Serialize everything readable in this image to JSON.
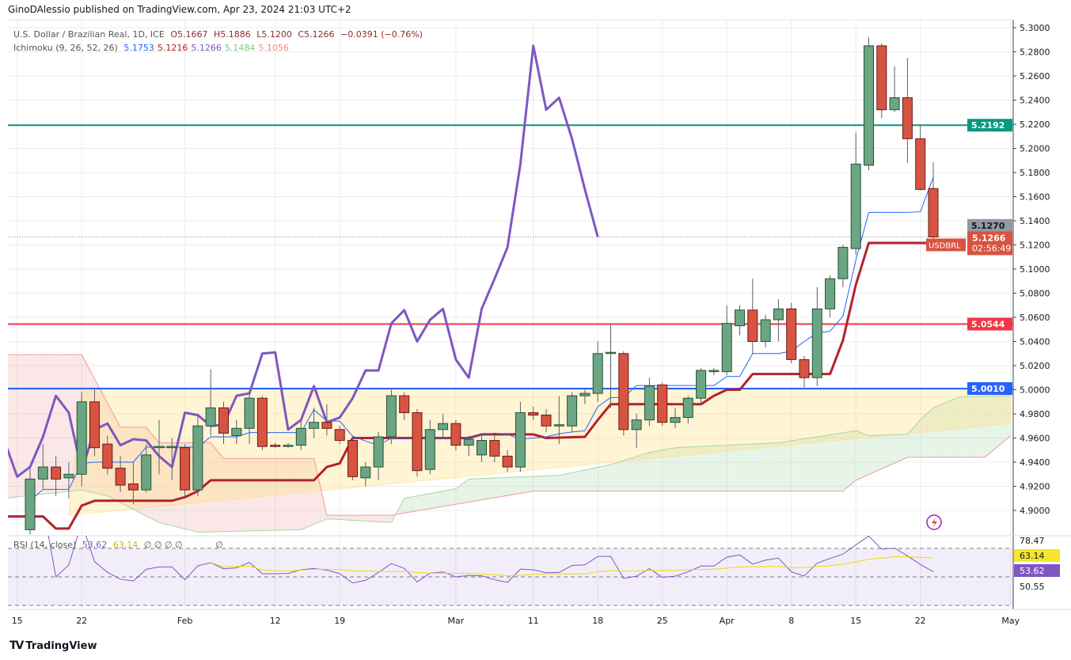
{
  "header": {
    "publisher": "GinoDAlessio published on TradingView.com, Apr 23, 2024 21:03 UTC+2"
  },
  "legend": {
    "symbol": "U.S. Dollar / Brazilian Real, 1D, ICE",
    "open": "O5.1667",
    "high": "H5.1886",
    "low": "L5.1200",
    "close": "C5.1266",
    "change": "−0.0391 (−0.76%)",
    "ichimoku_label": "Ichimoku (9, 26, 52, 26)",
    "ichimoku_values": [
      {
        "value": "5.1753",
        "color": "#2962ff"
      },
      {
        "value": "5.1216",
        "color": "#b71c1c"
      },
      {
        "value": "5.1266",
        "color": "#7e57c2"
      },
      {
        "value": "5.1484",
        "color": "#81c784"
      },
      {
        "value": "5.1056",
        "color": "#f28b82"
      }
    ]
  },
  "rsi_legend": {
    "label": "RSI (14, close)",
    "rsi": "53.62",
    "ma": "63.14",
    "empty": "∅ ∅ ∅ ∅",
    "empty2": "∅"
  },
  "price_axis": {
    "ticks": [
      "5.3000",
      "5.2800",
      "5.2600",
      "5.2400",
      "5.2200",
      "5.2000",
      "5.1800",
      "5.1600",
      "5.1400",
      "5.1200",
      "5.1000",
      "5.0800",
      "5.0600",
      "5.0400",
      "5.0200",
      "5.0000",
      "4.9800",
      "4.9600",
      "4.9400",
      "4.9200",
      "4.9000"
    ],
    "symbol_tag": "USDBRL",
    "last_price": "5.1266",
    "countdown": "02:56:49",
    "gray_tag": "5.1270"
  },
  "rsi_axis": {
    "max_label": "78.47",
    "ma_label": "63.14",
    "rsi_label": "53.62",
    "min_label": "50.55"
  },
  "x_axis": {
    "ticks": [
      {
        "date": "2024-01-15",
        "label": "15"
      },
      {
        "date": "2024-01-22",
        "label": "22"
      },
      {
        "date": "2024-02-01",
        "label": "Feb"
      },
      {
        "date": "2024-02-12",
        "label": "12"
      },
      {
        "date": "2024-02-19",
        "label": "19"
      },
      {
        "date": "2024-03-01",
        "label": "Mar"
      },
      {
        "date": "2024-03-11",
        "label": "11"
      },
      {
        "date": "2024-03-18",
        "label": "18"
      },
      {
        "date": "2024-03-25",
        "label": "25"
      },
      {
        "date": "2024-04-01",
        "label": "Apr"
      },
      {
        "date": "2024-04-08",
        "label": "8"
      },
      {
        "date": "2024-04-15",
        "label": "15"
      },
      {
        "date": "2024-04-22",
        "label": "22"
      },
      {
        "date": "2024-05-01",
        "label": "May"
      }
    ]
  },
  "footer": {
    "brand": "TradingView"
  },
  "colors": {
    "up": "#6ba583",
    "up_border": "#225437",
    "down": "#d75442",
    "down_border": "#6b1a14",
    "tenkan": "#2962ff",
    "kijun": "#b2222e",
    "lagging": "#7e57c2",
    "span_a": "#a5d6a7",
    "span_b": "#ef9a9a",
    "resistance": "#089981",
    "mid_level": "#f23645",
    "support": "#2962ff"
  },
  "chart_data": {
    "type": "candlestick",
    "symbol": "USDBRL",
    "interval": "1D",
    "ylim": [
      4.88,
      5.3
    ],
    "levels": [
      {
        "value": 5.2192,
        "label": "5.2192",
        "color": "#089981"
      },
      {
        "value": 5.0544,
        "label": "5.0544",
        "color": "#f23645"
      },
      {
        "value": 5.001,
        "label": "5.0010",
        "color": "#2962ff"
      }
    ],
    "triangle_drawing": [
      [
        "2024-01-19",
        4.896
      ],
      [
        "2024-01-22",
        5.0
      ],
      [
        "2024-05-01",
        5.0
      ],
      [
        "2024-05-01",
        4.972
      ]
    ],
    "candles": [
      [
        "2024-01-16",
        4.884,
        4.936,
        4.88,
        4.926
      ],
      [
        "2024-01-17",
        4.926,
        4.955,
        4.918,
        4.936
      ],
      [
        "2024-01-18",
        4.936,
        4.945,
        4.912,
        4.926
      ],
      [
        "2024-01-19",
        4.927,
        4.94,
        4.91,
        4.93
      ],
      [
        "2024-01-22",
        4.93,
        4.998,
        4.92,
        4.99
      ],
      [
        "2024-01-23",
        4.99,
        5.0,
        4.945,
        4.952
      ],
      [
        "2024-01-24",
        4.955,
        4.962,
        4.93,
        4.935
      ],
      [
        "2024-01-25",
        4.935,
        4.945,
        4.915,
        4.921
      ],
      [
        "2024-01-26",
        4.922,
        4.94,
        4.905,
        4.917
      ],
      [
        "2024-01-29",
        4.917,
        4.955,
        4.915,
        4.946
      ],
      [
        "2024-01-30",
        4.952,
        4.975,
        4.93,
        4.953
      ],
      [
        "2024-01-31",
        4.952,
        4.96,
        4.925,
        4.953
      ],
      [
        "2024-02-01",
        4.952,
        4.955,
        4.912,
        4.917
      ],
      [
        "2024-02-02",
        4.917,
        4.98,
        4.912,
        4.97
      ],
      [
        "2024-02-05",
        4.97,
        5.017,
        4.962,
        4.985
      ],
      [
        "2024-02-06",
        4.985,
        4.99,
        4.955,
        4.964
      ],
      [
        "2024-02-07",
        4.962,
        4.975,
        4.955,
        4.968
      ],
      [
        "2024-02-08",
        4.968,
        4.998,
        4.955,
        4.993
      ],
      [
        "2024-02-09",
        4.993,
        4.995,
        4.95,
        4.953
      ],
      [
        "2024-02-12",
        4.954,
        4.956,
        4.952,
        4.953
      ],
      [
        "2024-02-13",
        4.954,
        4.956,
        4.952,
        4.954
      ],
      [
        "2024-02-14",
        4.954,
        4.975,
        4.95,
        4.968
      ],
      [
        "2024-02-15",
        4.968,
        4.985,
        4.96,
        4.973
      ],
      [
        "2024-02-16",
        4.973,
        4.988,
        4.962,
        4.968
      ],
      [
        "2024-02-19",
        4.967,
        4.97,
        4.955,
        4.958
      ],
      [
        "2024-02-20",
        4.958,
        4.96,
        4.925,
        4.928
      ],
      [
        "2024-02-21",
        4.927,
        4.94,
        4.92,
        4.936
      ],
      [
        "2024-02-22",
        4.936,
        4.965,
        4.925,
        4.961
      ],
      [
        "2024-02-23",
        4.961,
        5.0,
        4.955,
        4.995
      ],
      [
        "2024-02-26",
        4.995,
        4.998,
        4.975,
        4.981
      ],
      [
        "2024-02-27",
        4.981,
        4.984,
        4.928,
        4.933
      ],
      [
        "2024-02-28",
        4.934,
        4.975,
        4.93,
        4.967
      ],
      [
        "2024-02-29",
        4.967,
        4.98,
        4.96,
        4.972
      ],
      [
        "2024-03-01",
        4.972,
        4.975,
        4.95,
        4.954
      ],
      [
        "2024-03-04",
        4.954,
        4.962,
        4.945,
        4.959
      ],
      [
        "2024-03-05",
        4.946,
        4.962,
        4.94,
        4.958
      ],
      [
        "2024-03-06",
        4.958,
        4.962,
        4.94,
        4.945
      ],
      [
        "2024-03-07",
        4.945,
        4.95,
        4.932,
        4.936
      ],
      [
        "2024-03-08",
        4.936,
        4.99,
        4.932,
        4.981
      ],
      [
        "2024-03-11",
        4.981,
        4.986,
        4.975,
        4.979
      ],
      [
        "2024-03-12",
        4.979,
        4.984,
        4.965,
        4.97
      ],
      [
        "2024-03-13",
        4.97,
        4.995,
        4.955,
        4.971
      ],
      [
        "2024-03-14",
        4.97,
        4.998,
        4.965,
        4.995
      ],
      [
        "2024-03-15",
        4.995,
        5.0,
        4.988,
        4.997
      ],
      [
        "2024-03-18",
        4.997,
        5.04,
        4.99,
        5.03
      ],
      [
        "2024-03-19",
        5.03,
        5.055,
        4.985,
        5.031
      ],
      [
        "2024-03-20",
        5.03,
        5.032,
        4.962,
        4.967
      ],
      [
        "2024-03-21",
        4.967,
        4.98,
        4.952,
        4.975
      ],
      [
        "2024-03-22",
        4.975,
        5.01,
        4.97,
        5.003
      ],
      [
        "2024-03-25",
        5.004,
        5.006,
        4.97,
        4.973
      ],
      [
        "2024-03-26",
        4.973,
        4.985,
        4.968,
        4.977
      ],
      [
        "2024-03-27",
        4.977,
        4.995,
        4.972,
        4.993
      ],
      [
        "2024-03-28",
        4.993,
        5.018,
        4.988,
        5.016
      ],
      [
        "2024-03-29",
        5.015,
        5.018,
        5.012,
        5.016
      ],
      [
        "2024-04-01",
        5.015,
        5.07,
        5.012,
        5.055
      ],
      [
        "2024-04-02",
        5.053,
        5.07,
        5.045,
        5.066
      ],
      [
        "2024-04-03",
        5.066,
        5.092,
        5.03,
        5.04
      ],
      [
        "2024-04-04",
        5.04,
        5.062,
        5.035,
        5.058
      ],
      [
        "2024-04-05",
        5.058,
        5.075,
        5.04,
        5.067
      ],
      [
        "2024-04-08",
        5.067,
        5.072,
        5.022,
        5.025
      ],
      [
        "2024-04-09",
        5.025,
        5.028,
        5.002,
        5.01
      ],
      [
        "2024-04-10",
        5.01,
        5.085,
        5.003,
        5.067
      ],
      [
        "2024-04-11",
        5.067,
        5.095,
        5.06,
        5.092
      ],
      [
        "2024-04-12",
        5.092,
        5.12,
        5.085,
        5.118
      ],
      [
        "2024-04-15",
        5.117,
        5.213,
        5.112,
        5.187
      ],
      [
        "2024-04-16",
        5.186,
        5.292,
        5.182,
        5.285
      ],
      [
        "2024-04-17",
        5.285,
        5.287,
        5.225,
        5.232
      ],
      [
        "2024-04-18",
        5.232,
        5.268,
        5.23,
        5.242
      ],
      [
        "2024-04-19",
        5.242,
        5.275,
        5.188,
        5.208
      ],
      [
        "2024-04-22",
        5.208,
        5.22,
        5.165,
        5.166
      ],
      [
        "2024-04-23",
        5.1667,
        5.1886,
        5.12,
        5.1266
      ]
    ],
    "ichimoku": {
      "params": [
        9,
        26,
        52,
        26
      ],
      "kijun": [
        [
          "2024-01-12",
          4.895
        ],
        [
          "2024-01-17",
          4.895
        ],
        [
          "2024-01-18",
          4.885
        ],
        [
          "2024-01-19",
          4.885
        ],
        [
          "2024-01-22",
          4.904
        ],
        [
          "2024-01-23",
          4.908
        ],
        [
          "2024-01-31",
          4.908
        ],
        [
          "2024-02-01",
          4.911
        ],
        [
          "2024-02-02",
          4.916
        ],
        [
          "2024-02-05",
          4.925
        ],
        [
          "2024-02-15",
          4.925
        ],
        [
          "2024-02-16",
          4.936
        ],
        [
          "2024-02-19",
          4.939
        ],
        [
          "2024-02-20",
          4.96
        ],
        [
          "2024-03-04",
          4.96
        ],
        [
          "2024-03-05",
          4.963
        ],
        [
          "2024-03-11",
          4.963
        ],
        [
          "2024-03-12",
          4.96
        ],
        [
          "2024-03-15",
          4.961
        ],
        [
          "2024-03-18",
          4.975
        ],
        [
          "2024-03-19",
          4.988
        ],
        [
          "2024-03-28",
          4.988
        ],
        [
          "2024-03-29",
          4.995
        ],
        [
          "2024-04-01",
          5.0
        ],
        [
          "2024-04-02",
          5.0
        ],
        [
          "2024-04-03",
          5.013
        ],
        [
          "2024-04-11",
          5.013
        ],
        [
          "2024-04-12",
          5.041
        ],
        [
          "2024-04-15",
          5.087
        ],
        [
          "2024-04-16",
          5.1216
        ],
        [
          "2024-04-23",
          5.1216
        ]
      ],
      "span_a": [
        [
          "2024-01-12",
          4.91
        ],
        [
          "2024-01-22",
          4.917
        ],
        [
          "2024-01-24",
          4.912
        ],
        [
          "2024-01-30",
          4.89
        ],
        [
          "2024-02-02",
          4.882
        ],
        [
          "2024-02-14",
          4.884
        ],
        [
          "2024-02-16",
          4.893
        ],
        [
          "2024-02-23",
          4.89
        ],
        [
          "2024-02-26",
          4.91
        ],
        [
          "2024-03-01",
          4.918
        ],
        [
          "2024-03-04",
          4.926
        ],
        [
          "2024-03-13",
          4.929
        ],
        [
          "2024-03-19",
          4.938
        ],
        [
          "2024-03-22",
          4.948
        ],
        [
          "2024-03-26",
          4.952
        ],
        [
          "2024-04-05",
          4.956
        ],
        [
          "2024-04-15",
          4.966
        ],
        [
          "2024-04-16",
          4.962
        ],
        [
          "2024-04-19",
          4.963
        ],
        [
          "2024-04-22",
          4.975
        ],
        [
          "2024-04-23",
          4.985
        ],
        [
          "2024-04-25",
          4.994
        ],
        [
          "2024-05-01",
          4.995
        ]
      ],
      "span_b": [
        [
          "2024-01-12",
          5.029
        ],
        [
          "2024-01-22",
          5.029
        ],
        [
          "2024-01-25",
          4.969
        ],
        [
          "2024-01-29",
          4.969
        ],
        [
          "2024-01-30",
          4.956
        ],
        [
          "2024-02-05",
          4.956
        ],
        [
          "2024-02-06",
          4.943
        ],
        [
          "2024-02-15",
          4.943
        ],
        [
          "2024-02-16",
          4.896
        ],
        [
          "2024-02-23",
          4.896
        ],
        [
          "2024-03-11",
          4.916
        ],
        [
          "2024-04-12",
          4.916
        ],
        [
          "2024-04-15",
          4.925
        ],
        [
          "2024-04-19",
          4.944
        ],
        [
          "2024-04-29",
          4.944
        ],
        [
          "2024-05-01",
          4.962
        ]
      ]
    },
    "rsi": {
      "period": 14,
      "ma_period": 14,
      "levels": [
        70,
        50,
        30
      ],
      "last": 53.62,
      "ma_last": 63.14
    }
  }
}
